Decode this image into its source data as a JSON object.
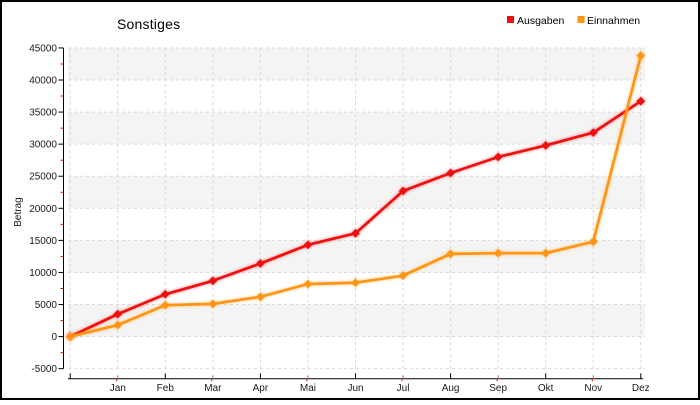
{
  "title": "Sonstiges",
  "y_axis_label": "Betrag",
  "legend": {
    "items": [
      {
        "label": "Ausgaben",
        "color": "#ee1010"
      },
      {
        "label": "Einnahmen",
        "color": "#ff9512"
      }
    ]
  },
  "chart_data": {
    "type": "line",
    "title": "Sonstiges",
    "xlabel": "",
    "ylabel": "Betrag",
    "categories": [
      "",
      "Jan",
      "Feb",
      "Mar",
      "Apr",
      "Mai",
      "Jun",
      "Jul",
      "Aug",
      "Sep",
      "Okt",
      "Nov",
      "Dez"
    ],
    "series": [
      {
        "name": "Ausgaben",
        "color": "#ee1010",
        "values": [
          0,
          3500,
          6600,
          8700,
          11400,
          14300,
          16100,
          22700,
          25500,
          28000,
          29800,
          31800,
          36700
        ]
      },
      {
        "name": "Einnahmen",
        "color": "#ff9512",
        "values": [
          0,
          1800,
          4900,
          5100,
          6200,
          8200,
          8400,
          9500,
          12900,
          13000,
          13000,
          14800,
          43800
        ]
      }
    ],
    "ylim": [
      -5000,
      45000
    ],
    "ytick_step": 5000,
    "ytick_labels": [
      "-5000",
      "0",
      "5000",
      "10000",
      "15000",
      "20000",
      "25000",
      "30000",
      "35000",
      "40000",
      "45000"
    ],
    "grid": "dashed",
    "band_fill": "#f4f4f4",
    "grid_color": "#d9d9d9",
    "minor_tick_color": "#cc2200",
    "legend_position": "top-right"
  }
}
